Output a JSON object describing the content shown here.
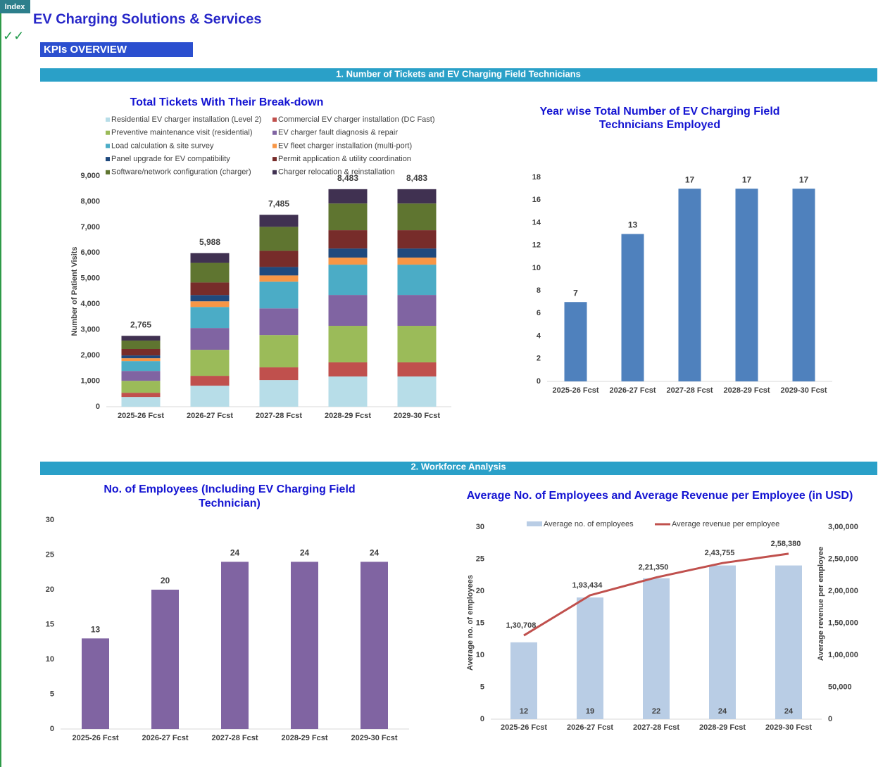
{
  "header": {
    "index_button": "Index",
    "checkmarks": "✓✓",
    "title": "EV Charging Solutions & Services",
    "kpi_label": "KPIs OVERVIEW",
    "sections": [
      "1. Number of Tickets and EV Charging Field Technicians",
      "2. Workforce Analysis"
    ]
  },
  "chart_data": [
    {
      "type": "stacked_bar",
      "title": [
        "Total Tickets With Their Break-down"
      ],
      "ylabel": "Number of Patient Visits",
      "categories": [
        "2025-26 Fcst",
        "2026-27 Fcst",
        "2027-28 Fcst",
        "2028-29 Fcst",
        "2029-30 Fcst"
      ],
      "series": [
        {
          "name": "Residential EV charger installation (Level 2)",
          "color": "#b7dde8",
          "values": [
            380,
            820,
            1040,
            1180,
            1180
          ]
        },
        {
          "name": "Commercial EV charger installation (DC Fast)",
          "color": "#c0504d",
          "values": [
            165,
            385,
            495,
            550,
            550
          ]
        },
        {
          "name": "Preventive maintenance visit (residential)",
          "color": "#9bbb59",
          "values": [
            465,
            1015,
            1260,
            1425,
            1425
          ]
        },
        {
          "name": "EV charger fault diagnosis & repair",
          "color": "#8064a2",
          "values": [
            385,
            850,
            1040,
            1205,
            1205
          ]
        },
        {
          "name": "Load calculation & site survey",
          "color": "#4bacc6",
          "values": [
            385,
            820,
            1040,
            1180,
            1180
          ]
        },
        {
          "name": "EV fleet charger installation (multi-port)",
          "color": "#f79646",
          "values": [
            110,
            220,
            245,
            275,
            275
          ]
        },
        {
          "name": "Panel upgrade for EV compatibility",
          "color": "#1f497d",
          "values": [
            110,
            245,
            330,
            355,
            355
          ]
        },
        {
          "name": "Permit application & utility coordination",
          "color": "#772c2a",
          "values": [
            250,
            490,
            630,
            715,
            715
          ]
        },
        {
          "name": "Software/network configuration (charger)",
          "color": "#5f7530",
          "values": [
            330,
            765,
            935,
            1040,
            1040
          ]
        },
        {
          "name": "Charger relocation & reinstallation",
          "color": "#403151",
          "values": [
            185,
            378,
            470,
            558,
            558
          ]
        }
      ],
      "totals": [
        2765,
        5988,
        7485,
        8483,
        8483
      ],
      "total_labels": [
        "2,765",
        "5,988",
        "7,485",
        "8,483",
        "8,483"
      ],
      "ylim": [
        0,
        9000
      ],
      "yticks": [
        0,
        {
          "value": 1000,
          "label": "1,000"
        },
        {
          "value": 2000,
          "label": "2,000"
        },
        {
          "value": 3000,
          "label": "3,000"
        },
        {
          "value": 4000,
          "label": "4,000"
        },
        {
          "value": 5000,
          "label": "5,000"
        },
        {
          "value": 6000,
          "label": "6,000"
        },
        {
          "value": 7000,
          "label": "7,000"
        },
        {
          "value": 8000,
          "label": "8,000"
        },
        {
          "value": 9000,
          "label": "9,000"
        }
      ]
    },
    {
      "type": "bar",
      "title": [
        "Year wise Total Number of EV Charging Field",
        "Technicians Employed"
      ],
      "categories": [
        "2025-26 Fcst",
        "2026-27 Fcst",
        "2027-28 Fcst",
        "2028-29 Fcst",
        "2029-30 Fcst"
      ],
      "values": [
        7,
        13,
        17,
        17,
        17
      ],
      "color": "#4f81bd",
      "ylim": [
        0,
        18
      ],
      "yticks": [
        0,
        2,
        4,
        6,
        8,
        10,
        12,
        14,
        16,
        18
      ]
    },
    {
      "type": "bar",
      "title": [
        "No. of Employees (Including EV Charging Field",
        "Technician)"
      ],
      "categories": [
        "2025-26 Fcst",
        "2026-27 Fcst",
        "2027-28 Fcst",
        "2028-29 Fcst",
        "2029-30 Fcst"
      ],
      "values": [
        13,
        20,
        24,
        24,
        24
      ],
      "color": "#8064a2",
      "ylim": [
        0,
        30
      ],
      "yticks": [
        0,
        5,
        10,
        15,
        20,
        25,
        30
      ]
    },
    {
      "type": "combo",
      "title": [
        "Average No. of Employees and Average Revenue per Employee (in USD)"
      ],
      "ylabel": "Average no. of  employees",
      "y2label": "Average revenue per employee",
      "categories": [
        "2025-26 Fcst",
        "2026-27 Fcst",
        "2027-28 Fcst",
        "2028-29 Fcst",
        "2029-30 Fcst"
      ],
      "series": [
        {
          "name": "Average no. of employees",
          "type": "bar",
          "color": "#b9cde5",
          "values": [
            12,
            19,
            22,
            24,
            24
          ]
        },
        {
          "name": "Average revenue per employee",
          "type": "line",
          "axis": "y2",
          "color": "#c0504d",
          "values": [
            130708,
            193434,
            221350,
            243755,
            258380
          ],
          "value_labels": [
            "1,30,708",
            "1,93,434",
            "2,21,350",
            "2,43,755",
            "2,58,380"
          ]
        }
      ],
      "ylim": [
        0,
        30
      ],
      "yticks": [
        0,
        5,
        10,
        15,
        20,
        25,
        30
      ],
      "y2lim": [
        0,
        300000
      ],
      "y2ticks": [
        0,
        {
          "value": 50000,
          "label": "50,000"
        },
        {
          "value": 100000,
          "label": "1,00,000"
        },
        {
          "value": 150000,
          "label": "1,50,000"
        },
        {
          "value": 200000,
          "label": "2,00,000"
        },
        {
          "value": 250000,
          "label": "2,50,000"
        },
        {
          "value": 300000,
          "label": "3,00,000"
        }
      ]
    }
  ]
}
